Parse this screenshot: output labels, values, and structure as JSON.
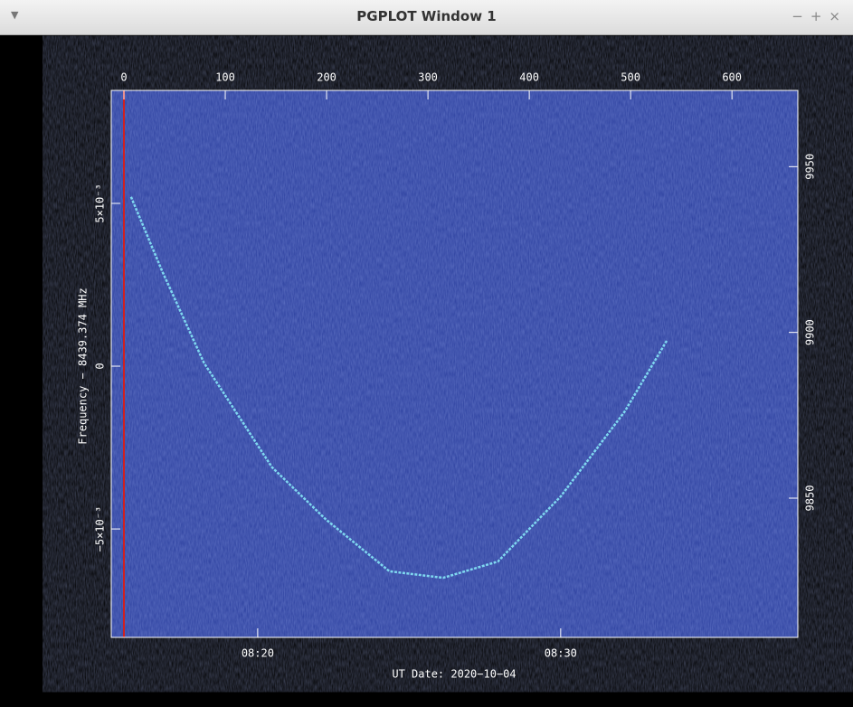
{
  "window": {
    "title": "PGPLOT Window 1",
    "controls": [
      "−",
      "+",
      "×"
    ]
  },
  "chart_data": {
    "type": "spectrogram",
    "xlabel": "UT Date: 2020−10−04",
    "ylabel": "Frequency − 8439.374 MHz",
    "x": [
      7,
      38,
      79,
      146,
      199,
      262,
      315,
      369,
      431,
      494,
      536
    ],
    "series": [
      {
        "color": "#7fd8f0",
        "values": [
          0.0052,
          0.0029,
          0.0001,
          -0.0031,
          -0.0047,
          -0.0063,
          -0.0065,
          -0.006,
          -0.004,
          -0.0014,
          0.0008
        ]
      }
    ],
    "xlim": [
      -12.5,
      665
    ],
    "xticks": [
      0,
      100,
      200,
      300,
      400,
      500,
      600
    ],
    "x2ticks": [
      {
        "value": 132,
        "label": "08:20"
      },
      {
        "value": 431,
        "label": "08:30"
      }
    ],
    "ylim": [
      -0.00833,
      0.00847
    ],
    "yticks": [
      {
        "value": -0.005,
        "label": "−5×10⁻³"
      },
      0,
      {
        "value": 0.005,
        "label": "5×10⁻³"
      }
    ],
    "y2lim": [
      9808,
      9973
    ],
    "y2ticks": [
      9850,
      9900,
      9950
    ],
    "background": "#2b3f9e"
  }
}
